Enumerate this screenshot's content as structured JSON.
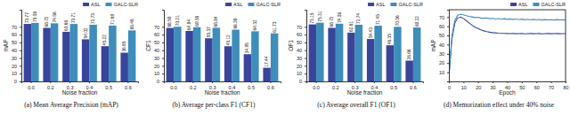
{
  "chart_data": [
    {
      "type": "bar",
      "title": "(a) Mean Average Precision (mAP)",
      "x_label": "Noise fraction",
      "y_label": "mAP",
      "categories": [
        "0.0",
        "0.2",
        "0.3",
        "0.4",
        "0.5",
        "0.6"
      ],
      "series": [
        {
          "name": "ASL",
          "color": "#38459a",
          "values": [
            73.77,
            68.72,
            63.66,
            54.02,
            45.22,
            36.85
          ]
        },
        {
          "name": "GALC-SLR",
          "color": "#3e8dbb",
          "values": [
            75.08,
            74.56,
            73.71,
            72.73,
            71.69,
            65.48
          ]
        }
      ],
      "ylim": [
        0,
        92
      ],
      "yticks": [
        0,
        10,
        20,
        30,
        40,
        50,
        60,
        70
      ],
      "legend": "upper right",
      "data_labels": true
    },
    {
      "type": "bar",
      "title": "(b) Average per-class F1 (CF1)",
      "x_label": "Noise fraction",
      "y_label": "CF1",
      "categories": [
        "0.0",
        "0.2",
        "0.3",
        "0.4",
        "0.5",
        "0.6"
      ],
      "series": [
        {
          "name": "ASL",
          "color": "#38459a",
          "values": [
            68.59,
            64.84,
            55.37,
            45.12,
            34.95,
            17.44
          ]
        },
        {
          "name": "GALC-SLR",
          "color": "#3e8dbb",
          "values": [
            70.21,
            69.58,
            68.84,
            66.38,
            64.32,
            61.73
          ]
        }
      ],
      "ylim": [
        0,
        92
      ],
      "yticks": [
        0,
        10,
        20,
        30,
        40,
        50,
        60,
        70
      ],
      "legend": "upper right",
      "data_labels": true
    },
    {
      "type": "bar",
      "title": "(c) Average overall F1 (OF1)",
      "x_label": "Noise fraction",
      "y_label": "OF1",
      "categories": [
        "0.0",
        "0.2",
        "0.3",
        "0.4",
        "0.5",
        "0.6"
      ],
      "series": [
        {
          "name": "ASL",
          "color": "#38459a",
          "values": [
            73.15,
            68.72,
            62.61,
            54.43,
            46.35,
            26.66
          ]
        },
        {
          "name": "GALC-SLR",
          "color": "#3e8dbb",
          "values": [
            75.31,
            74.06,
            72.74,
            71.45,
            70.06,
            69.22
          ]
        }
      ],
      "ylim": [
        0,
        92
      ],
      "yticks": [
        0,
        10,
        20,
        30,
        40,
        50,
        60,
        70
      ],
      "legend": "upper right",
      "data_labels": true
    },
    {
      "type": "line",
      "title": "(d) Memorization effect under 40% noise",
      "x_label": "Epoch",
      "y_label": "mAP",
      "x": [
        0,
        2,
        4,
        6,
        8,
        10,
        12,
        14,
        16,
        18,
        20,
        22,
        24,
        26,
        28,
        30,
        32,
        34,
        36,
        38,
        40,
        42,
        44,
        46,
        48,
        50,
        52,
        54,
        56,
        58,
        60,
        62,
        64,
        66,
        68,
        70,
        72,
        74,
        76,
        78,
        80
      ],
      "series": [
        {
          "name": "ASL",
          "color": "#38459a",
          "values": [
            4,
            45,
            63,
            69,
            70,
            68.5,
            66,
            63.5,
            61,
            59,
            57.5,
            56,
            55,
            54.2,
            53.6,
            53.1,
            52.8,
            52.5,
            52.3,
            52.2,
            52.1,
            52,
            52.2,
            51.9,
            52,
            52.1,
            51.8,
            52,
            52.1,
            51.9,
            52,
            52.1,
            51.8,
            52,
            52.1,
            51.9,
            52,
            52.1,
            51.9,
            52,
            52
          ]
        },
        {
          "name": "GALC-SLR",
          "color": "#3e8dbb",
          "values": [
            5,
            48,
            66,
            72,
            73,
            72.5,
            71.5,
            70.8,
            70.2,
            69.5,
            69.8,
            69,
            68.7,
            69.1,
            68.3,
            68.6,
            67.9,
            68.4,
            67.7,
            68.2,
            67.5,
            68,
            67.3,
            67.9,
            67.2,
            67.8,
            67.1,
            67.6,
            67,
            67.5,
            66.9,
            67.4,
            66.8,
            67.3,
            66.9,
            67.2,
            66.8,
            67.3,
            66.9,
            67.1,
            66.8
          ]
        }
      ],
      "xlim": [
        0,
        80
      ],
      "xticks": [
        0,
        10,
        20,
        30,
        40,
        50,
        60,
        70,
        80
      ],
      "ylim": [
        0,
        78
      ],
      "yticks": [
        10,
        20,
        30,
        40,
        50,
        60,
        70
      ],
      "legend": "upper right"
    }
  ]
}
